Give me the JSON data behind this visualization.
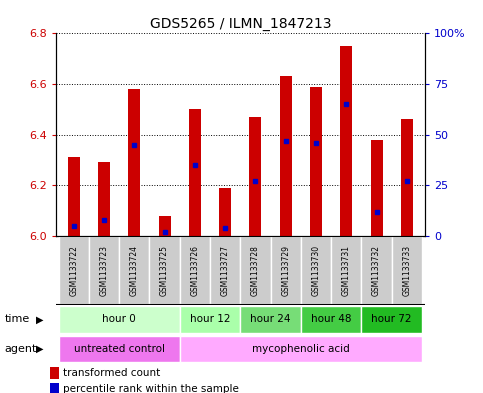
{
  "title": "GDS5265 / ILMN_1847213",
  "samples": [
    "GSM1133722",
    "GSM1133723",
    "GSM1133724",
    "GSM1133725",
    "GSM1133726",
    "GSM1133727",
    "GSM1133728",
    "GSM1133729",
    "GSM1133730",
    "GSM1133731",
    "GSM1133732",
    "GSM1133733"
  ],
  "transformed_count": [
    6.31,
    6.29,
    6.58,
    6.08,
    6.5,
    6.19,
    6.47,
    6.63,
    6.59,
    6.75,
    6.38,
    6.46
  ],
  "percentile_rank": [
    5,
    8,
    45,
    2,
    35,
    4,
    27,
    47,
    46,
    65,
    12,
    27
  ],
  "ylim": [
    6.0,
    6.8
  ],
  "y2lim": [
    0,
    100
  ],
  "y_ticks": [
    6.0,
    6.2,
    6.4,
    6.6,
    6.8
  ],
  "y2_ticks": [
    0,
    25,
    50,
    75,
    100
  ],
  "y2_labels": [
    "0",
    "25",
    "50",
    "75",
    "100%"
  ],
  "bar_color": "#cc0000",
  "dot_color": "#0000cc",
  "bar_bottom": 6.0,
  "time_groups": [
    {
      "label": "hour 0",
      "start": 0,
      "end": 4,
      "color": "#ccffcc"
    },
    {
      "label": "hour 12",
      "start": 4,
      "end": 6,
      "color": "#aaffaa"
    },
    {
      "label": "hour 24",
      "start": 6,
      "end": 8,
      "color": "#77dd77"
    },
    {
      "label": "hour 48",
      "start": 8,
      "end": 10,
      "color": "#44cc44"
    },
    {
      "label": "hour 72",
      "start": 10,
      "end": 12,
      "color": "#22bb22"
    }
  ],
  "agent_groups": [
    {
      "label": "untreated control",
      "start": 0,
      "end": 4,
      "color": "#ee77ee"
    },
    {
      "label": "mycophenolic acid",
      "start": 4,
      "end": 12,
      "color": "#ffaaff"
    }
  ],
  "legend_items": [
    {
      "label": "transformed count",
      "color": "#cc0000",
      "marker": "s"
    },
    {
      "label": "percentile rank within the sample",
      "color": "#0000cc",
      "marker": "s"
    }
  ],
  "grid_color": "black",
  "left_label_color": "#cc0000",
  "right_label_color": "#0000cc",
  "time_row_label": "time",
  "agent_row_label": "agent",
  "bar_width": 0.4,
  "figsize": [
    4.83,
    3.93
  ],
  "dpi": 100
}
